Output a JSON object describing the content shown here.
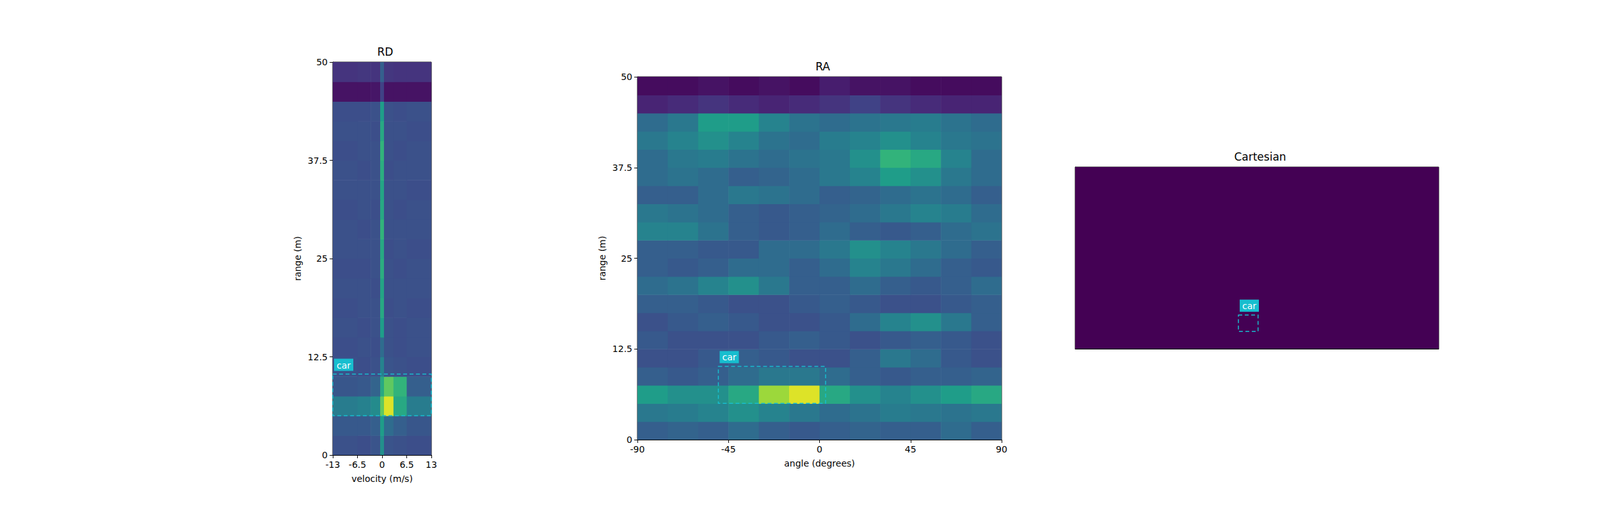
{
  "chart_data": [
    {
      "type": "heatmap",
      "title": "RD",
      "x_label": "velocity (m/s)",
      "y_label": "range (m)",
      "xlim": [
        -13,
        13
      ],
      "ylim": [
        0,
        50
      ],
      "xticks": [
        -13,
        -6.5,
        0,
        6.5,
        13
      ],
      "yticks": [
        0,
        12.5,
        25,
        37.5,
        50
      ],
      "clim": [
        0,
        1
      ],
      "x_edges": [
        -13,
        -6.5,
        -3,
        -0.5,
        0.5,
        3,
        6.5,
        13
      ],
      "y_edges": [
        0,
        2.5,
        5,
        7.5,
        10,
        12.5,
        15,
        17.5,
        20,
        22.5,
        25,
        27.5,
        30,
        32.5,
        35,
        37.5,
        40,
        42.5,
        45,
        47.5,
        50
      ],
      "cells": [
        [
          0.25,
          0.24,
          0.26,
          0.5,
          0.26,
          0.25,
          0.24
        ],
        [
          0.28,
          0.28,
          0.3,
          0.55,
          0.35,
          0.3,
          0.27
        ],
        [
          0.42,
          0.44,
          0.48,
          0.75,
          0.95,
          0.6,
          0.42
        ],
        [
          0.27,
          0.28,
          0.32,
          0.6,
          0.75,
          0.65,
          0.3
        ],
        [
          0.25,
          0.24,
          0.25,
          0.45,
          0.26,
          0.25,
          0.24
        ],
        [
          0.24,
          0.25,
          0.24,
          0.35,
          0.25,
          0.24,
          0.25
        ],
        [
          0.25,
          0.24,
          0.25,
          0.55,
          0.25,
          0.24,
          0.25
        ],
        [
          0.24,
          0.25,
          0.25,
          0.6,
          0.24,
          0.25,
          0.24
        ],
        [
          0.25,
          0.25,
          0.24,
          0.58,
          0.25,
          0.25,
          0.25
        ],
        [
          0.24,
          0.24,
          0.25,
          0.62,
          0.25,
          0.24,
          0.25
        ],
        [
          0.25,
          0.25,
          0.25,
          0.6,
          0.24,
          0.25,
          0.24
        ],
        [
          0.25,
          0.24,
          0.25,
          0.65,
          0.25,
          0.25,
          0.25
        ],
        [
          0.24,
          0.25,
          0.24,
          0.6,
          0.25,
          0.24,
          0.25
        ],
        [
          0.25,
          0.25,
          0.25,
          0.58,
          0.25,
          0.25,
          0.24
        ],
        [
          0.25,
          0.24,
          0.25,
          0.62,
          0.24,
          0.25,
          0.25
        ],
        [
          0.24,
          0.25,
          0.25,
          0.65,
          0.25,
          0.24,
          0.25
        ],
        [
          0.25,
          0.25,
          0.24,
          0.6,
          0.25,
          0.25,
          0.24
        ],
        [
          0.24,
          0.24,
          0.25,
          0.55,
          0.25,
          0.24,
          0.25
        ],
        [
          0.05,
          0.05,
          0.06,
          0.2,
          0.05,
          0.05,
          0.05
        ],
        [
          0.15,
          0.16,
          0.15,
          0.3,
          0.16,
          0.15,
          0.15
        ]
      ],
      "boxes": [
        {
          "label": "car",
          "x": [
            -13,
            13
          ],
          "y": [
            5,
            10.3
          ],
          "color": "#17becf"
        }
      ]
    },
    {
      "type": "heatmap",
      "title": "RA",
      "x_label": "angle (degrees)",
      "y_label": "range (m)",
      "xlim": [
        -90,
        90
      ],
      "ylim": [
        0,
        50
      ],
      "xticks": [
        -90,
        -45,
        0,
        45,
        90
      ],
      "yticks": [
        0,
        12.5,
        25,
        37.5,
        50
      ],
      "clim": [
        0,
        1
      ],
      "x_edges": [
        -90,
        -75,
        -60,
        -45,
        -30,
        -15,
        0,
        15,
        30,
        45,
        60,
        75,
        90
      ],
      "y_edges": [
        0,
        2.5,
        5,
        7.5,
        10,
        12.5,
        15,
        17.5,
        20,
        22.5,
        25,
        27.5,
        30,
        32.5,
        35,
        37.5,
        40,
        42.5,
        45,
        47.5,
        50
      ],
      "cells": [
        [
          0.3,
          0.32,
          0.3,
          0.35,
          0.3,
          0.28,
          0.3,
          0.32,
          0.3,
          0.3,
          0.35,
          0.3
        ],
        [
          0.4,
          0.42,
          0.45,
          0.5,
          0.45,
          0.4,
          0.35,
          0.38,
          0.42,
          0.4,
          0.38,
          0.4
        ],
        [
          0.55,
          0.5,
          0.5,
          0.6,
          0.85,
          0.95,
          0.6,
          0.5,
          0.45,
          0.5,
          0.55,
          0.6
        ],
        [
          0.3,
          0.28,
          0.3,
          0.35,
          0.4,
          0.4,
          0.35,
          0.3,
          0.28,
          0.3,
          0.3,
          0.32
        ],
        [
          0.25,
          0.25,
          0.28,
          0.3,
          0.28,
          0.25,
          0.25,
          0.3,
          0.4,
          0.35,
          0.28,
          0.25
        ],
        [
          0.28,
          0.25,
          0.25,
          0.25,
          0.28,
          0.3,
          0.28,
          0.25,
          0.28,
          0.3,
          0.28,
          0.25
        ],
        [
          0.25,
          0.28,
          0.3,
          0.28,
          0.25,
          0.25,
          0.28,
          0.35,
          0.45,
          0.5,
          0.4,
          0.3
        ],
        [
          0.3,
          0.3,
          0.28,
          0.25,
          0.25,
          0.28,
          0.3,
          0.28,
          0.25,
          0.25,
          0.28,
          0.3
        ],
        [
          0.35,
          0.38,
          0.45,
          0.5,
          0.4,
          0.3,
          0.3,
          0.35,
          0.3,
          0.28,
          0.3,
          0.35
        ],
        [
          0.3,
          0.28,
          0.3,
          0.35,
          0.35,
          0.3,
          0.35,
          0.45,
          0.4,
          0.35,
          0.3,
          0.28
        ],
        [
          0.3,
          0.3,
          0.28,
          0.28,
          0.35,
          0.35,
          0.4,
          0.5,
          0.45,
          0.4,
          0.35,
          0.3
        ],
        [
          0.45,
          0.45,
          0.38,
          0.3,
          0.28,
          0.3,
          0.35,
          0.3,
          0.28,
          0.3,
          0.35,
          0.38
        ],
        [
          0.4,
          0.38,
          0.35,
          0.3,
          0.28,
          0.3,
          0.32,
          0.35,
          0.4,
          0.45,
          0.42,
          0.35
        ],
        [
          0.3,
          0.3,
          0.35,
          0.4,
          0.38,
          0.35,
          0.3,
          0.32,
          0.35,
          0.38,
          0.35,
          0.3
        ],
        [
          0.35,
          0.38,
          0.35,
          0.3,
          0.32,
          0.35,
          0.4,
          0.45,
          0.55,
          0.5,
          0.4,
          0.35
        ],
        [
          0.35,
          0.4,
          0.42,
          0.38,
          0.35,
          0.38,
          0.4,
          0.5,
          0.65,
          0.6,
          0.45,
          0.35
        ],
        [
          0.4,
          0.45,
          0.5,
          0.45,
          0.38,
          0.35,
          0.42,
          0.45,
          0.5,
          0.45,
          0.4,
          0.38
        ],
        [
          0.35,
          0.4,
          0.55,
          0.55,
          0.45,
          0.38,
          0.35,
          0.38,
          0.4,
          0.42,
          0.38,
          0.35
        ],
        [
          0.1,
          0.12,
          0.15,
          0.12,
          0.1,
          0.12,
          0.15,
          0.2,
          0.15,
          0.12,
          0.1,
          0.1
        ],
        [
          0.03,
          0.03,
          0.05,
          0.03,
          0.05,
          0.03,
          0.08,
          0.05,
          0.05,
          0.03,
          0.03,
          0.03
        ]
      ],
      "boxes": [
        {
          "label": "car",
          "x": [
            -50,
            3
          ],
          "y": [
            5,
            10.1
          ],
          "color": "#17becf"
        }
      ]
    },
    {
      "type": "heatmap",
      "title": "Cartesian",
      "xlim": [
        -50,
        50
      ],
      "ylim": [
        0,
        50
      ],
      "tick_labels": false,
      "clim": [
        0,
        1
      ],
      "x_edges": [
        -50,
        50
      ],
      "y_edges": [
        0,
        50
      ],
      "cells": [
        [
          0
        ]
      ],
      "boxes": [
        {
          "label": "car",
          "x": [
            -5.1,
            0.3
          ],
          "y": [
            4.8,
            9.3
          ],
          "color": "#17becf"
        }
      ]
    }
  ]
}
